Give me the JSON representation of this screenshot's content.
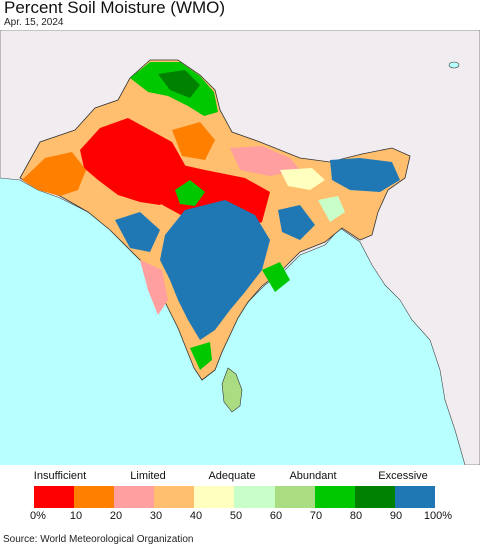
{
  "header": {
    "title": "Percent Soil Moisture (WMO)",
    "date": "Apr. 15, 2024"
  },
  "legend": {
    "categories": [
      "Insufficient",
      "Limited",
      "Adequate",
      "Abundant",
      "Excessive"
    ],
    "colors": [
      "#ff0000",
      "#ff7f00",
      "#ff9f9f",
      "#ffbf6f",
      "#ffffbf",
      "#c8ffc8",
      "#aadc82",
      "#00c800",
      "#008200",
      "#1f78b4"
    ],
    "ticks": [
      "0%",
      "10",
      "20",
      "30",
      "40",
      "50",
      "60",
      "70",
      "80",
      "90",
      "100%"
    ]
  },
  "colors": {
    "ocean": "#b8ffff",
    "land_outside": "#f0ecf0",
    "border": "#333333"
  },
  "footer": {
    "source": "Source: World Meteorological Organization"
  }
}
